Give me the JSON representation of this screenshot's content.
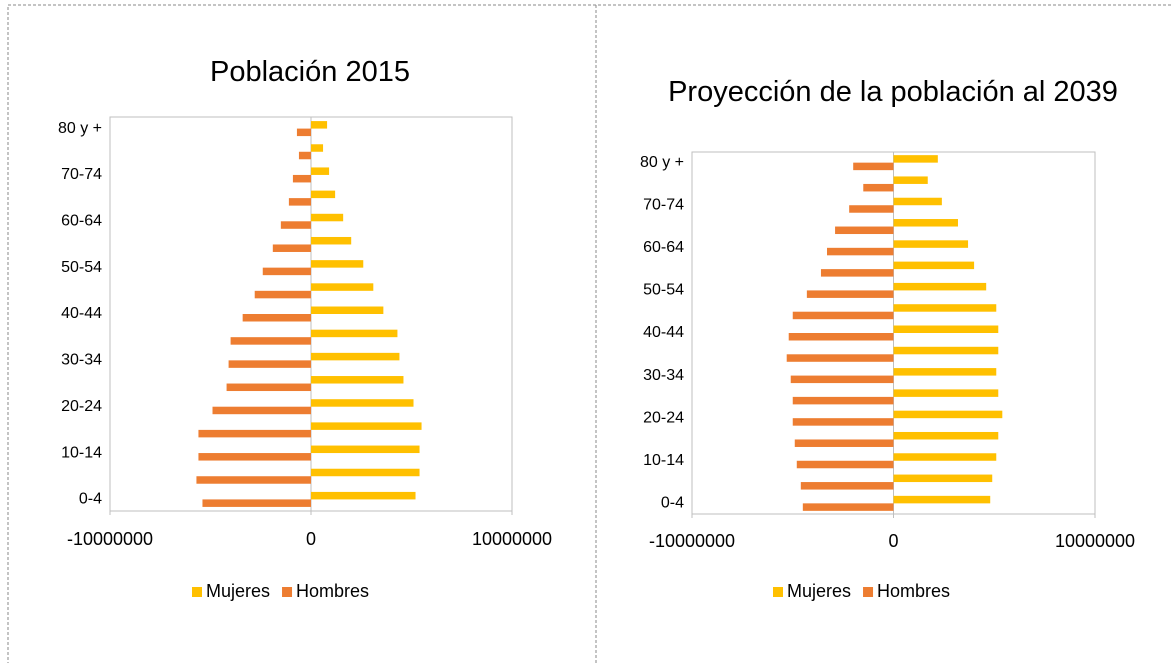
{
  "chart_data": [
    {
      "type": "bar",
      "orientation": "horizontal",
      "title": "Población 2015",
      "categories": [
        "0-4",
        null,
        "10-14",
        null,
        "20-24",
        null,
        "30-34",
        null,
        "40-44",
        null,
        "50-54",
        null,
        "60-64",
        null,
        "70-74",
        null,
        "80 y +"
      ],
      "series": [
        {
          "name": "Mujeres",
          "color": "#ffc000",
          "values": [
            5200000,
            5400000,
            5400000,
            5500000,
            5100000,
            4600000,
            4400000,
            4300000,
            3600000,
            3100000,
            2600000,
            2000000,
            1600000,
            1200000,
            900000,
            600000,
            800000
          ]
        },
        {
          "name": "Hombres",
          "color": "#ed7d31",
          "values": [
            -5400000,
            -5700000,
            -5600000,
            -5600000,
            -4900000,
            -4200000,
            -4100000,
            -4000000,
            -3400000,
            -2800000,
            -2400000,
            -1900000,
            -1500000,
            -1100000,
            -900000,
            -600000,
            -700000
          ]
        }
      ],
      "xlim": [
        -10000000,
        10000000
      ],
      "xticks": [
        -10000000,
        0,
        10000000
      ],
      "legend": "bottom"
    },
    {
      "type": "bar",
      "orientation": "horizontal",
      "title": "Proyección de la población al 2039",
      "categories": [
        "0-4",
        null,
        "10-14",
        null,
        "20-24",
        null,
        "30-34",
        null,
        "40-44",
        null,
        "50-54",
        null,
        "60-64",
        null,
        "70-74",
        null,
        "80 y +"
      ],
      "series": [
        {
          "name": "Mujeres",
          "color": "#ffc000",
          "values": [
            4800000,
            4900000,
            5100000,
            5200000,
            5400000,
            5200000,
            5100000,
            5200000,
            5200000,
            5100000,
            4600000,
            4000000,
            3700000,
            3200000,
            2400000,
            1700000,
            2200000
          ]
        },
        {
          "name": "Hombres",
          "color": "#ed7d31",
          "values": [
            -4500000,
            -4600000,
            -4800000,
            -4900000,
            -5000000,
            -5000000,
            -5100000,
            -5300000,
            -5200000,
            -5000000,
            -4300000,
            -3600000,
            -3300000,
            -2900000,
            -2200000,
            -1500000,
            -2000000
          ]
        }
      ],
      "xlim": [
        -10000000,
        10000000
      ],
      "xticks": [
        -10000000,
        0,
        10000000
      ],
      "legend": "bottom"
    }
  ]
}
